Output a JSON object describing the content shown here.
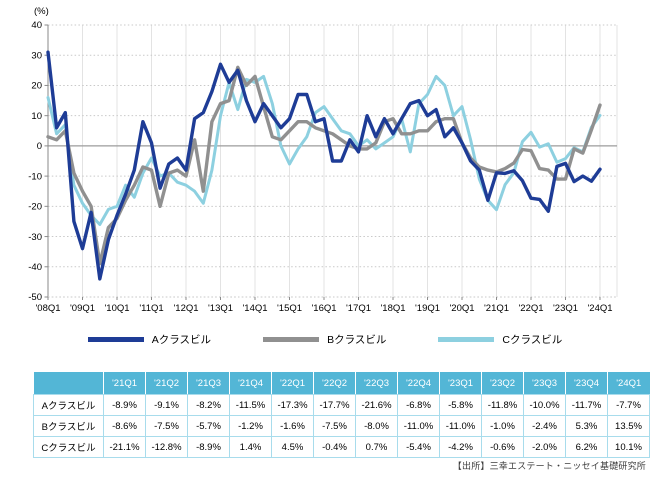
{
  "chart": {
    "unit_label": "(%)",
    "y_ticks": [
      40,
      30,
      20,
      10,
      0,
      -10,
      -20,
      -30,
      -40,
      -50
    ],
    "x_tick_labels": [
      "'08Q1",
      "'09Q1",
      "'10Q1",
      "'11Q1",
      "'12Q1",
      "'13Q1",
      "'14Q1",
      "'15Q1",
      "'16Q1",
      "'17Q1",
      "'18Q1",
      "'19Q1",
      "'20Q1",
      "'21Q1",
      "'22Q1",
      "'23Q1",
      "'24Q1"
    ],
    "colors": {
      "grid_dotted": "#c9c9c9",
      "grid_vertical": "#e3e3e3",
      "zero_line": "#9c9c9c",
      "axis": "#8a8a8a",
      "label_text": "#000000"
    }
  },
  "chart_data": {
    "type": "line",
    "title": "",
    "ylabel": "(%)",
    "ylim": [
      -50,
      40
    ],
    "grid": true,
    "legend_position": "bottom",
    "x_start": "'08Q1",
    "x_end": "'24Q1",
    "points_per_year": 4,
    "x_year_labels": [
      "'08Q1",
      "'09Q1",
      "'10Q1",
      "'11Q1",
      "'12Q1",
      "'13Q1",
      "'14Q1",
      "'15Q1",
      "'16Q1",
      "'17Q1",
      "'18Q1",
      "'19Q1",
      "'20Q1",
      "'21Q1",
      "'22Q1",
      "'23Q1",
      "'24Q1"
    ],
    "series": [
      {
        "name": "Aクラスビル",
        "color": "#1e3c96",
        "stroke_width": 3.4,
        "values": [
          31,
          6,
          11,
          -25,
          -34,
          -22,
          -44,
          -31,
          -23,
          -16,
          -8,
          8,
          1,
          -14,
          -6,
          -4,
          -8,
          9,
          11,
          18,
          27,
          21,
          25,
          15,
          8,
          14,
          10,
          6,
          9,
          17,
          17,
          8,
          9,
          -5,
          -5,
          2,
          -2,
          10,
          3,
          9,
          4,
          9,
          14,
          15,
          10,
          12,
          3,
          6,
          1,
          -5,
          -8,
          -18,
          -8.9,
          -9.1,
          -8.2,
          -11.5,
          -17.3,
          -17.7,
          -21.6,
          -6.8,
          -5.8,
          -11.8,
          -10.0,
          -11.7,
          -7.7
        ]
      },
      {
        "name": "Bクラスビル",
        "color": "#909090",
        "stroke_width": 3.4,
        "values": [
          3,
          2,
          5,
          -9,
          -15,
          -20,
          -39,
          -27,
          -24,
          -18,
          -13,
          -7,
          -8,
          -20,
          -9,
          -8,
          -10,
          2,
          -15,
          8,
          14,
          15,
          26,
          20,
          23,
          13,
          3,
          2,
          5,
          8,
          8,
          6,
          5,
          4,
          2,
          0,
          -1,
          -1,
          1,
          8,
          9,
          4,
          4,
          5,
          5,
          8,
          9,
          9,
          1,
          -4,
          -7,
          -8,
          -8.6,
          -7.5,
          -5.7,
          -1.2,
          -1.6,
          -7.5,
          -8.0,
          -11.0,
          -11.0,
          -1.0,
          -2.4,
          5.3,
          13.5
        ]
      },
      {
        "name": "Cクラスビル",
        "color": "#8dd0e0",
        "stroke_width": 3.0,
        "values": [
          16,
          4,
          7,
          -13,
          -19,
          -23,
          -26,
          -21,
          -20,
          -13,
          -17,
          -9,
          -4,
          -10,
          -9,
          -12,
          -13,
          -15,
          -19,
          -8,
          10,
          21,
          12,
          22,
          21,
          23,
          14,
          0,
          -6,
          -1,
          3,
          11,
          13,
          9,
          5,
          4,
          0,
          2,
          -1,
          1,
          3,
          9,
          -2,
          14,
          17,
          23,
          20,
          10,
          13,
          2,
          -11,
          -18,
          -21.1,
          -12.8,
          -8.9,
          1.4,
          4.5,
          -0.4,
          0.7,
          -5.4,
          -4.2,
          -0.6,
          -2.0,
          6.2,
          10.1
        ]
      }
    ]
  },
  "table": {
    "corner_label": "",
    "columns": [
      "'21Q1",
      "'21Q2",
      "'21Q3",
      "'21Q4",
      "'22Q1",
      "'22Q2",
      "'22Q3",
      "'22Q4",
      "'23Q1",
      "'23Q2",
      "'23Q3",
      "'23Q4",
      "'24Q1"
    ],
    "rows": [
      {
        "label": "Aクラスビル",
        "values": [
          "-8.9%",
          "-9.1%",
          "-8.2%",
          "-11.5%",
          "-17.3%",
          "-17.7%",
          "-21.6%",
          "-6.8%",
          "-5.8%",
          "-11.8%",
          "-10.0%",
          "-11.7%",
          "-7.7%"
        ]
      },
      {
        "label": "Bクラスビル",
        "values": [
          "-8.6%",
          "-7.5%",
          "-5.7%",
          "-1.2%",
          "-1.6%",
          "-7.5%",
          "-8.0%",
          "-11.0%",
          "-11.0%",
          "-1.0%",
          "-2.4%",
          "5.3%",
          "13.5%"
        ]
      },
      {
        "label": "Cクラスビル",
        "values": [
          "-21.1%",
          "-12.8%",
          "-8.9%",
          "1.4%",
          "4.5%",
          "-0.4%",
          "0.7%",
          "-5.4%",
          "-4.2%",
          "-0.6%",
          "-2.0%",
          "6.2%",
          "10.1%"
        ]
      }
    ],
    "header_bg": "#53b6d6",
    "border_color": "#a8dcec"
  },
  "source_note": "【出所】三幸エステート・ニッセイ基礎研究所"
}
